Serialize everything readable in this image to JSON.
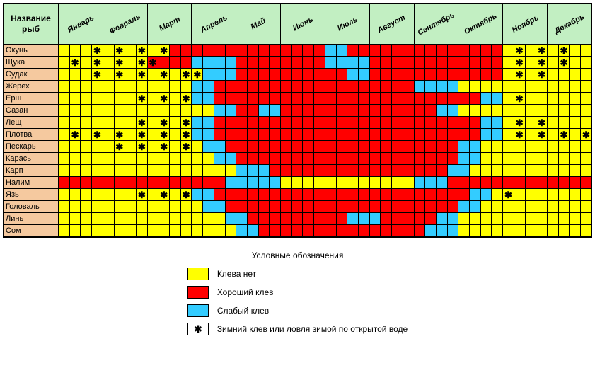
{
  "type": "heatmap-calendar",
  "title_corner": "Название рыб",
  "months": [
    "Январь",
    "Февраль",
    "Март",
    "Апрель",
    "Май",
    "Июнь",
    "Июль",
    "Август",
    "Сентябрь",
    "Октябрь",
    "Ноябрь",
    "Декабрь"
  ],
  "weeks_per_month": 4,
  "colors": {
    "header_bg": "#c2efc2",
    "label_bg": "#f5c99f",
    "none": "#ffff00",
    "good": "#ff0000",
    "weak": "#33ccff",
    "grid": "#000000",
    "star_glyph": "✱"
  },
  "legend": {
    "title": "Условные обозначения",
    "items": [
      {
        "key": "none",
        "label": "Клева нет"
      },
      {
        "key": "good",
        "label": "Хороший клев"
      },
      {
        "key": "weak",
        "label": "Слабый клев"
      },
      {
        "key": "star",
        "label": "Зимний клев или ловля зимой по открытой воде"
      }
    ]
  },
  "fish": [
    {
      "name": "Окунь",
      "cells": [
        "y",
        "y",
        "y",
        "ys",
        "y",
        "ys",
        "y",
        "ys",
        "y",
        "ys",
        "r",
        "r",
        "r",
        "r",
        "r",
        "r",
        "r",
        "r",
        "r",
        "r",
        "r",
        "r",
        "r",
        "r",
        "b",
        "b",
        "r",
        "r",
        "r",
        "r",
        "r",
        "r",
        "r",
        "r",
        "r",
        "r",
        "r",
        "r",
        "r",
        "r",
        "y",
        "ys",
        "y",
        "ys",
        "y",
        "ys",
        "y",
        "y"
      ]
    },
    {
      "name": "Щука",
      "cells": [
        "y",
        "ys",
        "y",
        "ys",
        "y",
        "ys",
        "y",
        "ys",
        "rs",
        "r",
        "r",
        "r",
        "b",
        "b",
        "b",
        "b",
        "r",
        "r",
        "r",
        "r",
        "r",
        "r",
        "r",
        "r",
        "b",
        "b",
        "b",
        "b",
        "r",
        "r",
        "r",
        "r",
        "r",
        "r",
        "r",
        "r",
        "r",
        "r",
        "r",
        "r",
        "y",
        "ys",
        "y",
        "ys",
        "y",
        "ys",
        "y",
        "y"
      ]
    },
    {
      "name": "Судак",
      "cells": [
        "y",
        "y",
        "y",
        "ys",
        "y",
        "ys",
        "y",
        "ys",
        "y",
        "ys",
        "y",
        "ys",
        "ys",
        "b",
        "b",
        "b",
        "r",
        "r",
        "r",
        "r",
        "r",
        "r",
        "r",
        "r",
        "r",
        "r",
        "b",
        "b",
        "r",
        "r",
        "r",
        "r",
        "r",
        "r",
        "r",
        "r",
        "r",
        "r",
        "r",
        "r",
        "y",
        "ys",
        "y",
        "ys",
        "y",
        "y",
        "y",
        "y"
      ]
    },
    {
      "name": "Жерех",
      "cells": [
        "y",
        "y",
        "y",
        "y",
        "y",
        "y",
        "y",
        "y",
        "y",
        "y",
        "y",
        "y",
        "b",
        "b",
        "r",
        "r",
        "r",
        "r",
        "r",
        "r",
        "r",
        "r",
        "r",
        "r",
        "r",
        "r",
        "r",
        "r",
        "r",
        "r",
        "r",
        "r",
        "b",
        "b",
        "b",
        "b",
        "y",
        "y",
        "y",
        "y",
        "y",
        "y",
        "y",
        "y",
        "y",
        "y",
        "y",
        "y"
      ]
    },
    {
      "name": "Ерш",
      "cells": [
        "y",
        "y",
        "y",
        "y",
        "y",
        "y",
        "y",
        "ys",
        "y",
        "ys",
        "y",
        "ys",
        "b",
        "b",
        "r",
        "r",
        "r",
        "r",
        "r",
        "r",
        "r",
        "r",
        "r",
        "r",
        "r",
        "r",
        "r",
        "r",
        "r",
        "r",
        "r",
        "r",
        "r",
        "r",
        "r",
        "r",
        "r",
        "r",
        "b",
        "b",
        "y",
        "ys",
        "y",
        "y",
        "y",
        "y",
        "y",
        "y"
      ]
    },
    {
      "name": "Сазан",
      "cells": [
        "y",
        "y",
        "y",
        "y",
        "y",
        "y",
        "y",
        "y",
        "y",
        "y",
        "y",
        "y",
        "y",
        "y",
        "b",
        "b",
        "r",
        "r",
        "b",
        "b",
        "r",
        "r",
        "r",
        "r",
        "r",
        "r",
        "r",
        "r",
        "r",
        "r",
        "r",
        "r",
        "r",
        "r",
        "b",
        "b",
        "y",
        "y",
        "y",
        "y",
        "y",
        "y",
        "y",
        "y",
        "y",
        "y",
        "y",
        "y"
      ]
    },
    {
      "name": "Лещ",
      "cells": [
        "y",
        "y",
        "y",
        "y",
        "y",
        "y",
        "y",
        "ys",
        "y",
        "ys",
        "y",
        "ys",
        "b",
        "b",
        "r",
        "r",
        "r",
        "r",
        "r",
        "r",
        "r",
        "r",
        "r",
        "r",
        "r",
        "r",
        "r",
        "r",
        "r",
        "r",
        "r",
        "r",
        "r",
        "r",
        "r",
        "r",
        "r",
        "r",
        "b",
        "b",
        "y",
        "ys",
        "y",
        "ys",
        "y",
        "y",
        "y",
        "y"
      ]
    },
    {
      "name": "Плотва",
      "cells": [
        "y",
        "ys",
        "y",
        "ys",
        "y",
        "ys",
        "y",
        "ys",
        "y",
        "ys",
        "y",
        "ys",
        "b",
        "b",
        "r",
        "r",
        "r",
        "r",
        "r",
        "r",
        "r",
        "r",
        "r",
        "r",
        "r",
        "r",
        "r",
        "r",
        "r",
        "r",
        "r",
        "r",
        "r",
        "r",
        "r",
        "r",
        "r",
        "r",
        "b",
        "b",
        "y",
        "ys",
        "y",
        "ys",
        "y",
        "ys",
        "y",
        "ys"
      ]
    },
    {
      "name": "Пескарь",
      "cells": [
        "y",
        "y",
        "y",
        "y",
        "y",
        "ys",
        "y",
        "ys",
        "y",
        "ys",
        "y",
        "ys",
        "y",
        "b",
        "b",
        "r",
        "r",
        "r",
        "r",
        "r",
        "r",
        "r",
        "r",
        "r",
        "r",
        "r",
        "r",
        "r",
        "r",
        "r",
        "r",
        "r",
        "r",
        "r",
        "r",
        "r",
        "b",
        "b",
        "y",
        "y",
        "y",
        "y",
        "y",
        "y",
        "y",
        "y",
        "y",
        "y"
      ]
    },
    {
      "name": "Карась",
      "cells": [
        "y",
        "y",
        "y",
        "y",
        "y",
        "y",
        "y",
        "y",
        "y",
        "y",
        "y",
        "y",
        "y",
        "y",
        "b",
        "b",
        "r",
        "r",
        "r",
        "r",
        "r",
        "r",
        "r",
        "r",
        "r",
        "r",
        "r",
        "r",
        "r",
        "r",
        "r",
        "r",
        "r",
        "r",
        "r",
        "r",
        "b",
        "b",
        "y",
        "y",
        "y",
        "y",
        "y",
        "y",
        "y",
        "y",
        "y",
        "y"
      ]
    },
    {
      "name": "Карп",
      "cells": [
        "y",
        "y",
        "y",
        "y",
        "y",
        "y",
        "y",
        "y",
        "y",
        "y",
        "y",
        "y",
        "y",
        "y",
        "y",
        "y",
        "b",
        "b",
        "b",
        "r",
        "r",
        "r",
        "r",
        "r",
        "r",
        "r",
        "r",
        "r",
        "r",
        "r",
        "r",
        "r",
        "r",
        "r",
        "r",
        "b",
        "b",
        "y",
        "y",
        "y",
        "y",
        "y",
        "y",
        "y",
        "y",
        "y",
        "y",
        "y"
      ]
    },
    {
      "name": "Налим",
      "cells": [
        "r",
        "r",
        "r",
        "r",
        "r",
        "r",
        "r",
        "r",
        "r",
        "r",
        "r",
        "r",
        "r",
        "r",
        "r",
        "b",
        "b",
        "b",
        "b",
        "b",
        "y",
        "y",
        "y",
        "y",
        "y",
        "y",
        "y",
        "y",
        "y",
        "y",
        "y",
        "y",
        "b",
        "b",
        "b",
        "r",
        "r",
        "r",
        "r",
        "r",
        "r",
        "r",
        "r",
        "r",
        "r",
        "r",
        "r",
        "r"
      ]
    },
    {
      "name": "Язь",
      "cells": [
        "y",
        "y",
        "y",
        "y",
        "y",
        "y",
        "y",
        "ys",
        "y",
        "ys",
        "y",
        "ys",
        "b",
        "b",
        "r",
        "r",
        "r",
        "r",
        "r",
        "r",
        "r",
        "r",
        "r",
        "r",
        "r",
        "r",
        "r",
        "r",
        "r",
        "r",
        "r",
        "r",
        "r",
        "r",
        "r",
        "r",
        "r",
        "b",
        "b",
        "y",
        "ys",
        "y",
        "y",
        "y",
        "y",
        "y",
        "y",
        "y"
      ]
    },
    {
      "name": "Головаль",
      "cells": [
        "y",
        "y",
        "y",
        "y",
        "y",
        "y",
        "y",
        "y",
        "y",
        "y",
        "y",
        "y",
        "y",
        "b",
        "b",
        "r",
        "r",
        "r",
        "r",
        "r",
        "r",
        "r",
        "r",
        "r",
        "r",
        "r",
        "r",
        "r",
        "r",
        "r",
        "r",
        "r",
        "r",
        "r",
        "r",
        "r",
        "b",
        "b",
        "y",
        "y",
        "y",
        "y",
        "y",
        "y",
        "y",
        "y",
        "y",
        "y"
      ]
    },
    {
      "name": "Линь",
      "cells": [
        "y",
        "y",
        "y",
        "y",
        "y",
        "y",
        "y",
        "y",
        "y",
        "y",
        "y",
        "y",
        "y",
        "y",
        "y",
        "b",
        "b",
        "r",
        "r",
        "r",
        "r",
        "r",
        "r",
        "r",
        "r",
        "r",
        "b",
        "b",
        "b",
        "r",
        "r",
        "r",
        "r",
        "r",
        "b",
        "b",
        "y",
        "y",
        "y",
        "y",
        "y",
        "y",
        "y",
        "y",
        "y",
        "y",
        "y",
        "y"
      ]
    },
    {
      "name": "Сом",
      "cells": [
        "y",
        "y",
        "y",
        "y",
        "y",
        "y",
        "y",
        "y",
        "y",
        "y",
        "y",
        "y",
        "y",
        "y",
        "y",
        "y",
        "b",
        "b",
        "r",
        "r",
        "r",
        "r",
        "r",
        "r",
        "r",
        "r",
        "r",
        "r",
        "r",
        "r",
        "r",
        "r",
        "r",
        "b",
        "b",
        "b",
        "y",
        "y",
        "y",
        "y",
        "y",
        "y",
        "y",
        "y",
        "y",
        "y",
        "y",
        "y"
      ]
    }
  ]
}
